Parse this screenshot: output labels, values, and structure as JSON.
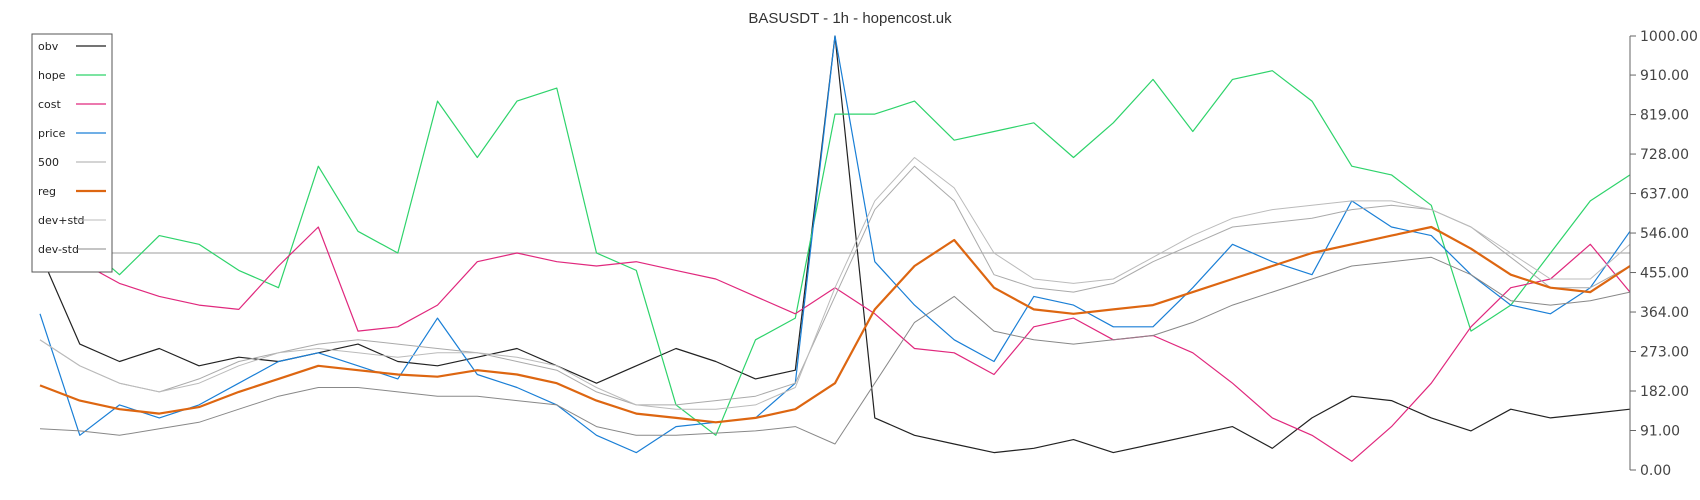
{
  "chart_data": {
    "type": "line",
    "title": "BASUSDT - 1h - hopencost.uk",
    "xlabel": "",
    "ylabel": "",
    "ylim": [
      0,
      1000
    ],
    "y_ticks": [
      "0.00",
      "91.00",
      "182.00",
      "273.00",
      "364.00",
      "455.00",
      "546.00",
      "637.00",
      "728.00",
      "819.00",
      "910.00",
      "1000.00"
    ],
    "y_tick_values": [
      0,
      91,
      182,
      273,
      364,
      455,
      546,
      637,
      728,
      819,
      910,
      1000
    ],
    "y_axis_side": "right",
    "legend_placement": "top-left",
    "grid": false,
    "reference_line": 500,
    "x": [
      0,
      10,
      20,
      30,
      40,
      50,
      60,
      70,
      80,
      90,
      100,
      110,
      120,
      130,
      140,
      150,
      160,
      170,
      180,
      190,
      200,
      210,
      220,
      230,
      240,
      250,
      260,
      270,
      280,
      290,
      300,
      310,
      320,
      330,
      340,
      350,
      360,
      370,
      380,
      390,
      400
    ],
    "series": [
      {
        "name": "obv",
        "color": "#222222",
        "width": 1.2,
        "values": [
          500,
          290,
          250,
          280,
          240,
          260,
          250,
          270,
          290,
          250,
          240,
          260,
          280,
          240,
          200,
          240,
          280,
          250,
          210,
          230,
          1000,
          120,
          80,
          60,
          40,
          50,
          70,
          40,
          60,
          80,
          100,
          50,
          120,
          170,
          160,
          120,
          90,
          140,
          120,
          130,
          140
        ]
      },
      {
        "name": "hope",
        "color": "#2ed36b",
        "width": 1.2,
        "values": [
          500,
          530,
          450,
          540,
          520,
          460,
          420,
          700,
          550,
          500,
          850,
          720,
          850,
          880,
          500,
          460,
          150,
          80,
          300,
          350,
          820,
          820,
          850,
          760,
          780,
          800,
          720,
          800,
          900,
          780,
          900,
          920,
          850,
          700,
          680,
          610,
          320,
          380,
          500,
          620,
          680
        ]
      },
      {
        "name": "cost",
        "color": "#e0287d",
        "width": 1.2,
        "values": [
          550,
          480,
          430,
          400,
          380,
          370,
          470,
          560,
          320,
          330,
          380,
          480,
          500,
          480,
          470,
          480,
          460,
          440,
          400,
          360,
          420,
          360,
          280,
          270,
          220,
          330,
          350,
          300,
          310,
          270,
          200,
          120,
          80,
          20,
          100,
          200,
          330,
          420,
          440,
          520,
          410
        ]
      },
      {
        "name": "price",
        "color": "#1a7fd6",
        "width": 1.2,
        "values": [
          360,
          80,
          150,
          120,
          150,
          200,
          250,
          270,
          240,
          210,
          350,
          220,
          190,
          150,
          80,
          40,
          100,
          110,
          120,
          200,
          1000,
          480,
          380,
          300,
          250,
          400,
          380,
          330,
          330,
          420,
          520,
          480,
          450,
          620,
          560,
          540,
          450,
          380,
          360,
          420,
          550
        ]
      },
      {
        "name": "500",
        "color": "#aaaaaa",
        "width": 1.0,
        "values": [
          300,
          240,
          200,
          180,
          210,
          250,
          270,
          290,
          300,
          290,
          280,
          270,
          250,
          230,
          180,
          150,
          150,
          160,
          170,
          200,
          400,
          600,
          700,
          620,
          450,
          420,
          410,
          430,
          480,
          520,
          560,
          570,
          580,
          600,
          610,
          600,
          560,
          490,
          420,
          420,
          470
        ]
      },
      {
        "name": "reg",
        "color": "#dd6611",
        "width": 2.2,
        "values": [
          195,
          160,
          140,
          130,
          145,
          180,
          210,
          240,
          230,
          220,
          215,
          230,
          220,
          200,
          160,
          130,
          120,
          110,
          120,
          140,
          200,
          370,
          470,
          530,
          420,
          370,
          360,
          370,
          380,
          410,
          440,
          470,
          500,
          520,
          540,
          560,
          510,
          450,
          420,
          410,
          470
        ]
      },
      {
        "name": "dev+std",
        "color": "#bbbbbb",
        "width": 1.0,
        "values": [
          300,
          240,
          200,
          180,
          200,
          240,
          270,
          280,
          270,
          260,
          270,
          270,
          260,
          240,
          190,
          150,
          140,
          140,
          150,
          190,
          420,
          620,
          720,
          650,
          500,
          440,
          430,
          440,
          490,
          540,
          580,
          600,
          610,
          620,
          620,
          600,
          560,
          500,
          440,
          440,
          520
        ]
      },
      {
        "name": "dev-std",
        "color": "#888888",
        "width": 1.0,
        "values": [
          95,
          90,
          80,
          95,
          110,
          140,
          170,
          190,
          190,
          180,
          170,
          170,
          160,
          150,
          100,
          80,
          80,
          85,
          90,
          100,
          60,
          200,
          340,
          400,
          320,
          300,
          290,
          300,
          310,
          340,
          380,
          410,
          440,
          470,
          480,
          490,
          450,
          390,
          380,
          390,
          410
        ]
      }
    ]
  }
}
